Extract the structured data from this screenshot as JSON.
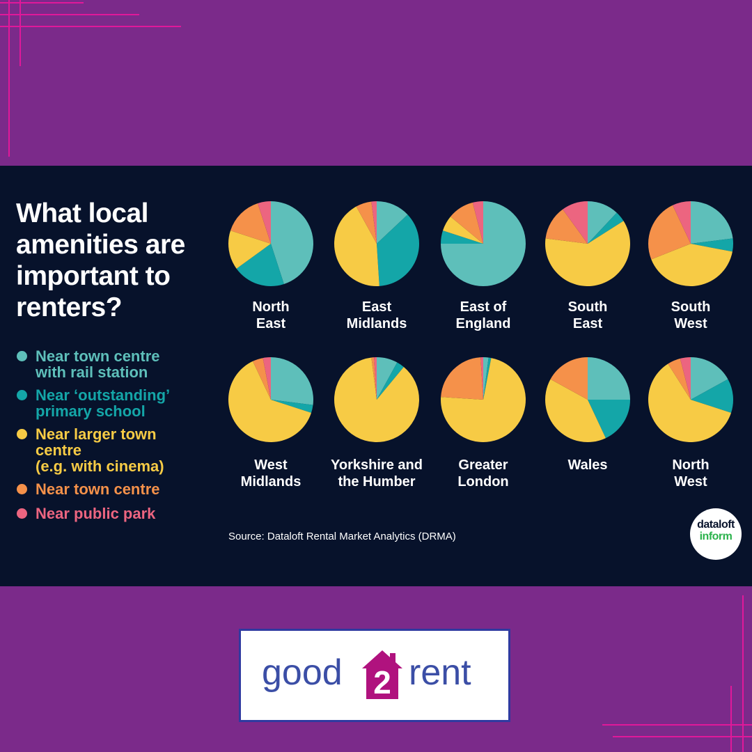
{
  "title": "What local amenities are important to renters?",
  "legend": [
    {
      "label": "Near town centre\nwith rail station",
      "color": "#5ebfba"
    },
    {
      "label": "Near ‘outstanding’\nprimary school",
      "color": "#14a6a8"
    },
    {
      "label": "Near larger town\ncentre\n(e.g. with cinema)",
      "color": "#f7cb45"
    },
    {
      "label": "Near town centre",
      "color": "#f5914a"
    },
    {
      "label": "Near public park",
      "color": "#ec6580"
    }
  ],
  "chart_data": {
    "type": "pie",
    "title": "What local amenities are important to renters?",
    "series_names": [
      "Near town centre with rail station",
      "Near ‘outstanding’ primary school",
      "Near larger town centre (e.g. with cinema)",
      "Near town centre",
      "Near public park"
    ],
    "colors": [
      "#5ebfba",
      "#14a6a8",
      "#f7cb45",
      "#f5914a",
      "#ec6580"
    ],
    "charts": [
      {
        "region": "North\nEast",
        "values": [
          45,
          20,
          15,
          15,
          5
        ]
      },
      {
        "region": "East\nMidlands",
        "values": [
          13,
          36,
          43,
          6,
          2
        ]
      },
      {
        "region": "East of\nEngland",
        "values": [
          75,
          5,
          6,
          10,
          4
        ]
      },
      {
        "region": "South\nEast",
        "values": [
          12,
          4,
          61,
          13,
          10
        ]
      },
      {
        "region": "South\nWest",
        "values": [
          23,
          5,
          41,
          24,
          7
        ]
      },
      {
        "region": "West\nMidlands",
        "values": [
          27,
          3,
          63,
          4,
          3
        ]
      },
      {
        "region": "Yorkshire and\nthe Humber",
        "values": [
          8,
          3,
          87,
          1,
          1
        ]
      },
      {
        "region": "Greater\nLondon",
        "values": [
          2,
          1,
          73,
          23,
          1
        ]
      },
      {
        "region": "Wales",
        "values": [
          25,
          18,
          40,
          17,
          0
        ]
      },
      {
        "region": "North\nWest",
        "values": [
          17,
          13,
          61,
          5,
          4
        ]
      }
    ]
  },
  "source": "Source: Dataloft Rental Market Analytics (DRMA)",
  "badge": {
    "line1": "dataloft",
    "line2": "inform"
  },
  "logo": {
    "left": "good",
    "number": "2",
    "right": "rent"
  }
}
